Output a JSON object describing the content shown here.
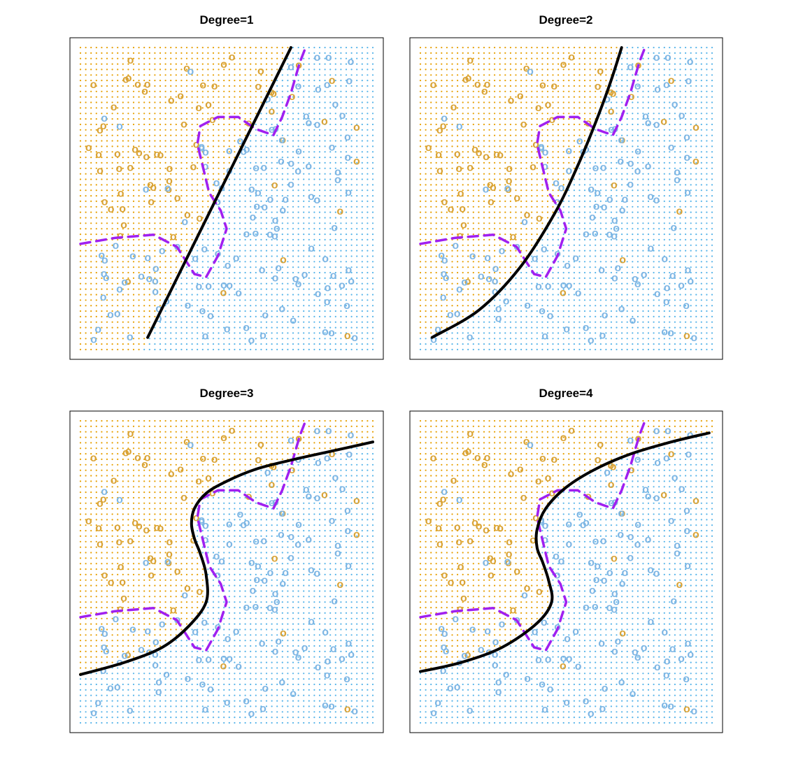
{
  "colors": {
    "orange": "#E69F00",
    "orange_pt": "#D9A336",
    "blue": "#56B4E9",
    "blue_pt": "#7EB6E4",
    "svm_boundary": "#000000",
    "bayes_boundary": "#A020F0"
  },
  "chart_data": [
    {
      "type": "scatter",
      "title": "Degree=1",
      "xlabel": "",
      "ylabel": "",
      "xlim": [
        0,
        1
      ],
      "ylim": [
        0,
        1
      ],
      "marker": "o",
      "grid_dots": true,
      "series": [
        {
          "class": "orange"
        },
        {
          "class": "blue"
        }
      ],
      "svm_boundary": [
        [
          0.23,
          0.04
        ],
        [
          0.72,
          1.0
        ]
      ],
      "bayes_boundary": [
        [
          0.0,
          0.35
        ],
        [
          0.12,
          0.37
        ],
        [
          0.25,
          0.38
        ],
        [
          0.33,
          0.34
        ],
        [
          0.39,
          0.25
        ],
        [
          0.43,
          0.24
        ],
        [
          0.47,
          0.31
        ],
        [
          0.5,
          0.4
        ],
        [
          0.48,
          0.46
        ],
        [
          0.44,
          0.52
        ],
        [
          0.42,
          0.6
        ],
        [
          0.4,
          0.68
        ],
        [
          0.41,
          0.74
        ],
        [
          0.47,
          0.77
        ],
        [
          0.54,
          0.77
        ],
        [
          0.6,
          0.73
        ],
        [
          0.66,
          0.71
        ],
        [
          0.69,
          0.77
        ],
        [
          0.72,
          0.85
        ],
        [
          0.75,
          0.95
        ],
        [
          0.77,
          1.0
        ]
      ]
    },
    {
      "type": "scatter",
      "title": "Degree=2",
      "xlabel": "",
      "ylabel": "",
      "xlim": [
        0,
        1
      ],
      "ylim": [
        0,
        1
      ],
      "marker": "o",
      "grid_dots": true,
      "series": [
        {
          "class": "orange"
        },
        {
          "class": "blue"
        }
      ],
      "svm_boundary": [
        [
          0.04,
          0.04
        ],
        [
          0.2,
          0.13
        ],
        [
          0.34,
          0.27
        ],
        [
          0.46,
          0.45
        ],
        [
          0.54,
          0.61
        ],
        [
          0.6,
          0.75
        ],
        [
          0.65,
          0.88
        ],
        [
          0.69,
          1.0
        ]
      ],
      "bayes_boundary": [
        [
          0.0,
          0.35
        ],
        [
          0.12,
          0.37
        ],
        [
          0.25,
          0.38
        ],
        [
          0.33,
          0.34
        ],
        [
          0.39,
          0.25
        ],
        [
          0.43,
          0.24
        ],
        [
          0.47,
          0.31
        ],
        [
          0.5,
          0.4
        ],
        [
          0.48,
          0.46
        ],
        [
          0.44,
          0.52
        ],
        [
          0.42,
          0.6
        ],
        [
          0.4,
          0.68
        ],
        [
          0.41,
          0.74
        ],
        [
          0.47,
          0.77
        ],
        [
          0.54,
          0.77
        ],
        [
          0.6,
          0.73
        ],
        [
          0.66,
          0.71
        ],
        [
          0.69,
          0.77
        ],
        [
          0.72,
          0.85
        ],
        [
          0.75,
          0.95
        ],
        [
          0.77,
          1.0
        ]
      ]
    },
    {
      "type": "scatter",
      "title": "Degree=3",
      "xlabel": "",
      "ylabel": "",
      "xlim": [
        0,
        1
      ],
      "ylim": [
        0,
        1
      ],
      "marker": "o",
      "grid_dots": true,
      "series": [
        {
          "class": "orange"
        },
        {
          "class": "blue"
        }
      ],
      "svm_boundary": [
        [
          0.0,
          0.16
        ],
        [
          0.15,
          0.2
        ],
        [
          0.28,
          0.25
        ],
        [
          0.37,
          0.32
        ],
        [
          0.43,
          0.4
        ],
        [
          0.43,
          0.49
        ],
        [
          0.41,
          0.56
        ],
        [
          0.39,
          0.61
        ],
        [
          0.38,
          0.66
        ],
        [
          0.39,
          0.71
        ],
        [
          0.43,
          0.76
        ],
        [
          0.5,
          0.8
        ],
        [
          0.6,
          0.84
        ],
        [
          0.72,
          0.87
        ],
        [
          0.86,
          0.9
        ],
        [
          1.0,
          0.93
        ]
      ],
      "bayes_boundary": [
        [
          0.0,
          0.35
        ],
        [
          0.12,
          0.37
        ],
        [
          0.25,
          0.38
        ],
        [
          0.33,
          0.34
        ],
        [
          0.39,
          0.25
        ],
        [
          0.43,
          0.24
        ],
        [
          0.47,
          0.31
        ],
        [
          0.5,
          0.4
        ],
        [
          0.48,
          0.46
        ],
        [
          0.44,
          0.52
        ],
        [
          0.42,
          0.6
        ],
        [
          0.4,
          0.68
        ],
        [
          0.41,
          0.74
        ],
        [
          0.47,
          0.77
        ],
        [
          0.54,
          0.77
        ],
        [
          0.6,
          0.73
        ],
        [
          0.66,
          0.71
        ],
        [
          0.69,
          0.77
        ],
        [
          0.72,
          0.85
        ],
        [
          0.75,
          0.95
        ],
        [
          0.77,
          1.0
        ]
      ]
    },
    {
      "type": "scatter",
      "title": "Degree=4",
      "xlabel": "",
      "ylabel": "",
      "xlim": [
        0,
        1
      ],
      "ylim": [
        0,
        1
      ],
      "marker": "o",
      "grid_dots": true,
      "series": [
        {
          "class": "orange"
        },
        {
          "class": "blue"
        }
      ],
      "svm_boundary": [
        [
          0.0,
          0.17
        ],
        [
          0.14,
          0.2
        ],
        [
          0.28,
          0.25
        ],
        [
          0.4,
          0.33
        ],
        [
          0.45,
          0.4
        ],
        [
          0.44,
          0.47
        ],
        [
          0.42,
          0.53
        ],
        [
          0.4,
          0.58
        ],
        [
          0.4,
          0.64
        ],
        [
          0.43,
          0.71
        ],
        [
          0.5,
          0.78
        ],
        [
          0.6,
          0.84
        ],
        [
          0.72,
          0.89
        ],
        [
          0.86,
          0.93
        ],
        [
          0.99,
          0.96
        ]
      ],
      "bayes_boundary": [
        [
          0.0,
          0.35
        ],
        [
          0.12,
          0.37
        ],
        [
          0.25,
          0.38
        ],
        [
          0.33,
          0.34
        ],
        [
          0.39,
          0.25
        ],
        [
          0.43,
          0.24
        ],
        [
          0.47,
          0.31
        ],
        [
          0.5,
          0.4
        ],
        [
          0.48,
          0.46
        ],
        [
          0.44,
          0.52
        ],
        [
          0.42,
          0.6
        ],
        [
          0.4,
          0.68
        ],
        [
          0.41,
          0.74
        ],
        [
          0.47,
          0.77
        ],
        [
          0.54,
          0.77
        ],
        [
          0.6,
          0.73
        ],
        [
          0.66,
          0.71
        ],
        [
          0.69,
          0.77
        ],
        [
          0.72,
          0.85
        ],
        [
          0.75,
          0.95
        ],
        [
          0.77,
          1.0
        ]
      ]
    }
  ]
}
